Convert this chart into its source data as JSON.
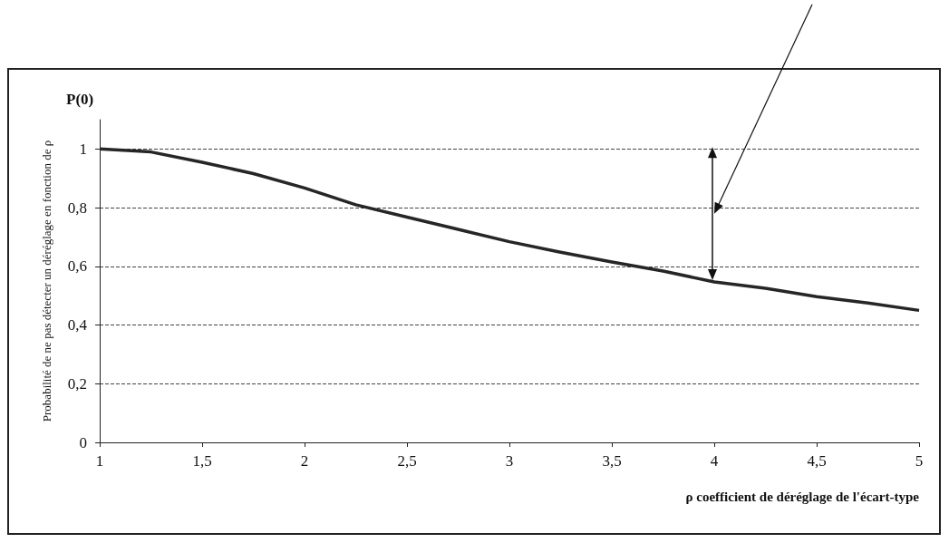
{
  "chart_data": {
    "type": "line",
    "ylabel": "Probabilité de ne pas détecter un déréglage en fonction de ρ",
    "xlabel": "ρ coefficient de déréglage de l'écart-type",
    "annotations": [
      "P(0)"
    ],
    "x": [
      1,
      1.25,
      1.5,
      1.75,
      2,
      2.25,
      2.5,
      2.75,
      3,
      3.25,
      3.5,
      3.75,
      4,
      4.25,
      4.5,
      4.75,
      5
    ],
    "series": [
      {
        "color": "#262626",
        "values": [
          1,
          0.99,
          0.955,
          0.916,
          0.867,
          0.81,
          0.768,
          0.726,
          0.684,
          0.648,
          0.615,
          0.584,
          0.547,
          0.525,
          0.497,
          0.475,
          0.45
        ]
      }
    ],
    "xlim": [
      1,
      5
    ],
    "xticks": [
      {
        "value": 1,
        "label": "1"
      },
      {
        "value": 1.5,
        "label": "1,5"
      },
      {
        "value": 2,
        "label": "2"
      },
      {
        "value": 2.5,
        "label": "2,5"
      },
      {
        "value": 3,
        "label": "3"
      },
      {
        "value": 3.5,
        "label": "3,5"
      },
      {
        "value": 4,
        "label": "4"
      },
      {
        "value": 4.5,
        "label": "4,5"
      },
      {
        "value": 5,
        "label": "5"
      }
    ],
    "ylim": [
      0,
      1.1
    ],
    "yticks": [
      {
        "value": 0,
        "label": "0"
      },
      {
        "value": 0.2,
        "label": "0,2"
      },
      {
        "value": 0.4,
        "label": "0,4"
      },
      {
        "value": 0.6,
        "label": "0,6"
      },
      {
        "value": 0.8,
        "label": "0,8"
      },
      {
        "value": 1,
        "label": "1"
      }
    ],
    "grid": "y",
    "marker": "none",
    "line_style": "solid"
  }
}
